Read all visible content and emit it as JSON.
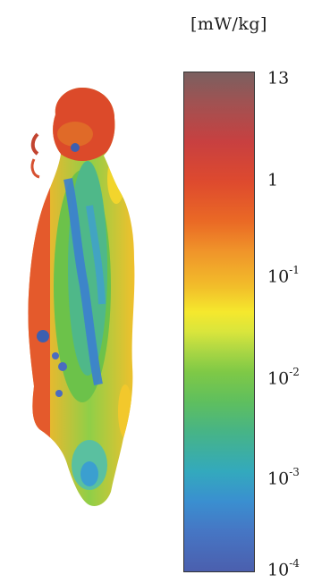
{
  "colorbar": {
    "unit": "[mW/kg]",
    "ticks": [
      {
        "base": "13",
        "exp": ""
      },
      {
        "base": "1",
        "exp": ""
      },
      {
        "base": "10",
        "exp": "-1"
      },
      {
        "base": "10",
        "exp": "-2"
      },
      {
        "base": "10",
        "exp": "-3"
      },
      {
        "base": "10",
        "exp": "-4"
      }
    ],
    "colors": {
      "max": "#7a6060",
      "high": "#de4a2e",
      "mid": "#f5e82d",
      "low_mid": "#5fbf5e",
      "low": "#33a9bd",
      "min": "#4b5fae"
    }
  }
}
